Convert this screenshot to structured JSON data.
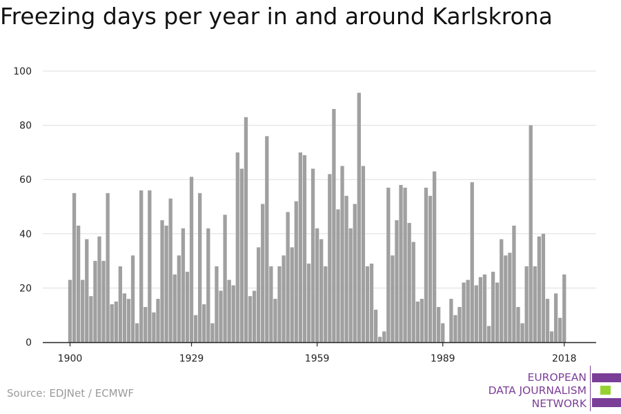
{
  "colors": {
    "bar": "#a0a0a0",
    "grid": "#dddddd",
    "axis": "#222222",
    "logo_purple": "#7b3e98",
    "logo_green": "#96d330"
  },
  "source": "Source: EDJNet / ECMWF",
  "logo": {
    "lines": [
      "EUROPEAN",
      "DATA JOURNALISM",
      "NETWORK"
    ]
  },
  "chart_data": {
    "type": "bar",
    "title": "Freezing days per year in and around Karlskrona",
    "xlabel": "",
    "ylabel": "",
    "ylim": [
      0,
      100
    ],
    "yticks": [
      0,
      20,
      40,
      60,
      80,
      100
    ],
    "xticks": [
      1900,
      1929,
      1959,
      1989,
      2018
    ],
    "grid": true,
    "x_start": 1900,
    "values": [
      23,
      55,
      43,
      23,
      38,
      17,
      30,
      39,
      30,
      55,
      14,
      15,
      28,
      18,
      16,
      32,
      7,
      56,
      13,
      56,
      11,
      16,
      45,
      43,
      53,
      25,
      32,
      42,
      26,
      61,
      10,
      55,
      14,
      42,
      7,
      28,
      19,
      47,
      23,
      21,
      70,
      64,
      83,
      17,
      19,
      35,
      51,
      76,
      28,
      16,
      28,
      32,
      48,
      35,
      52,
      70,
      69,
      29,
      64,
      42,
      38,
      28,
      62,
      86,
      49,
      65,
      54,
      42,
      51,
      92,
      65,
      28,
      29,
      12,
      2,
      4,
      57,
      32,
      45,
      58,
      57,
      44,
      37,
      15,
      16,
      57,
      54,
      63,
      13,
      7,
      0,
      16,
      10,
      13,
      22,
      23,
      59,
      21,
      24,
      25,
      6,
      26,
      22,
      38,
      32,
      33,
      43,
      13,
      7,
      28,
      80,
      28,
      39,
      40,
      16,
      4,
      18,
      9,
      25
    ]
  }
}
